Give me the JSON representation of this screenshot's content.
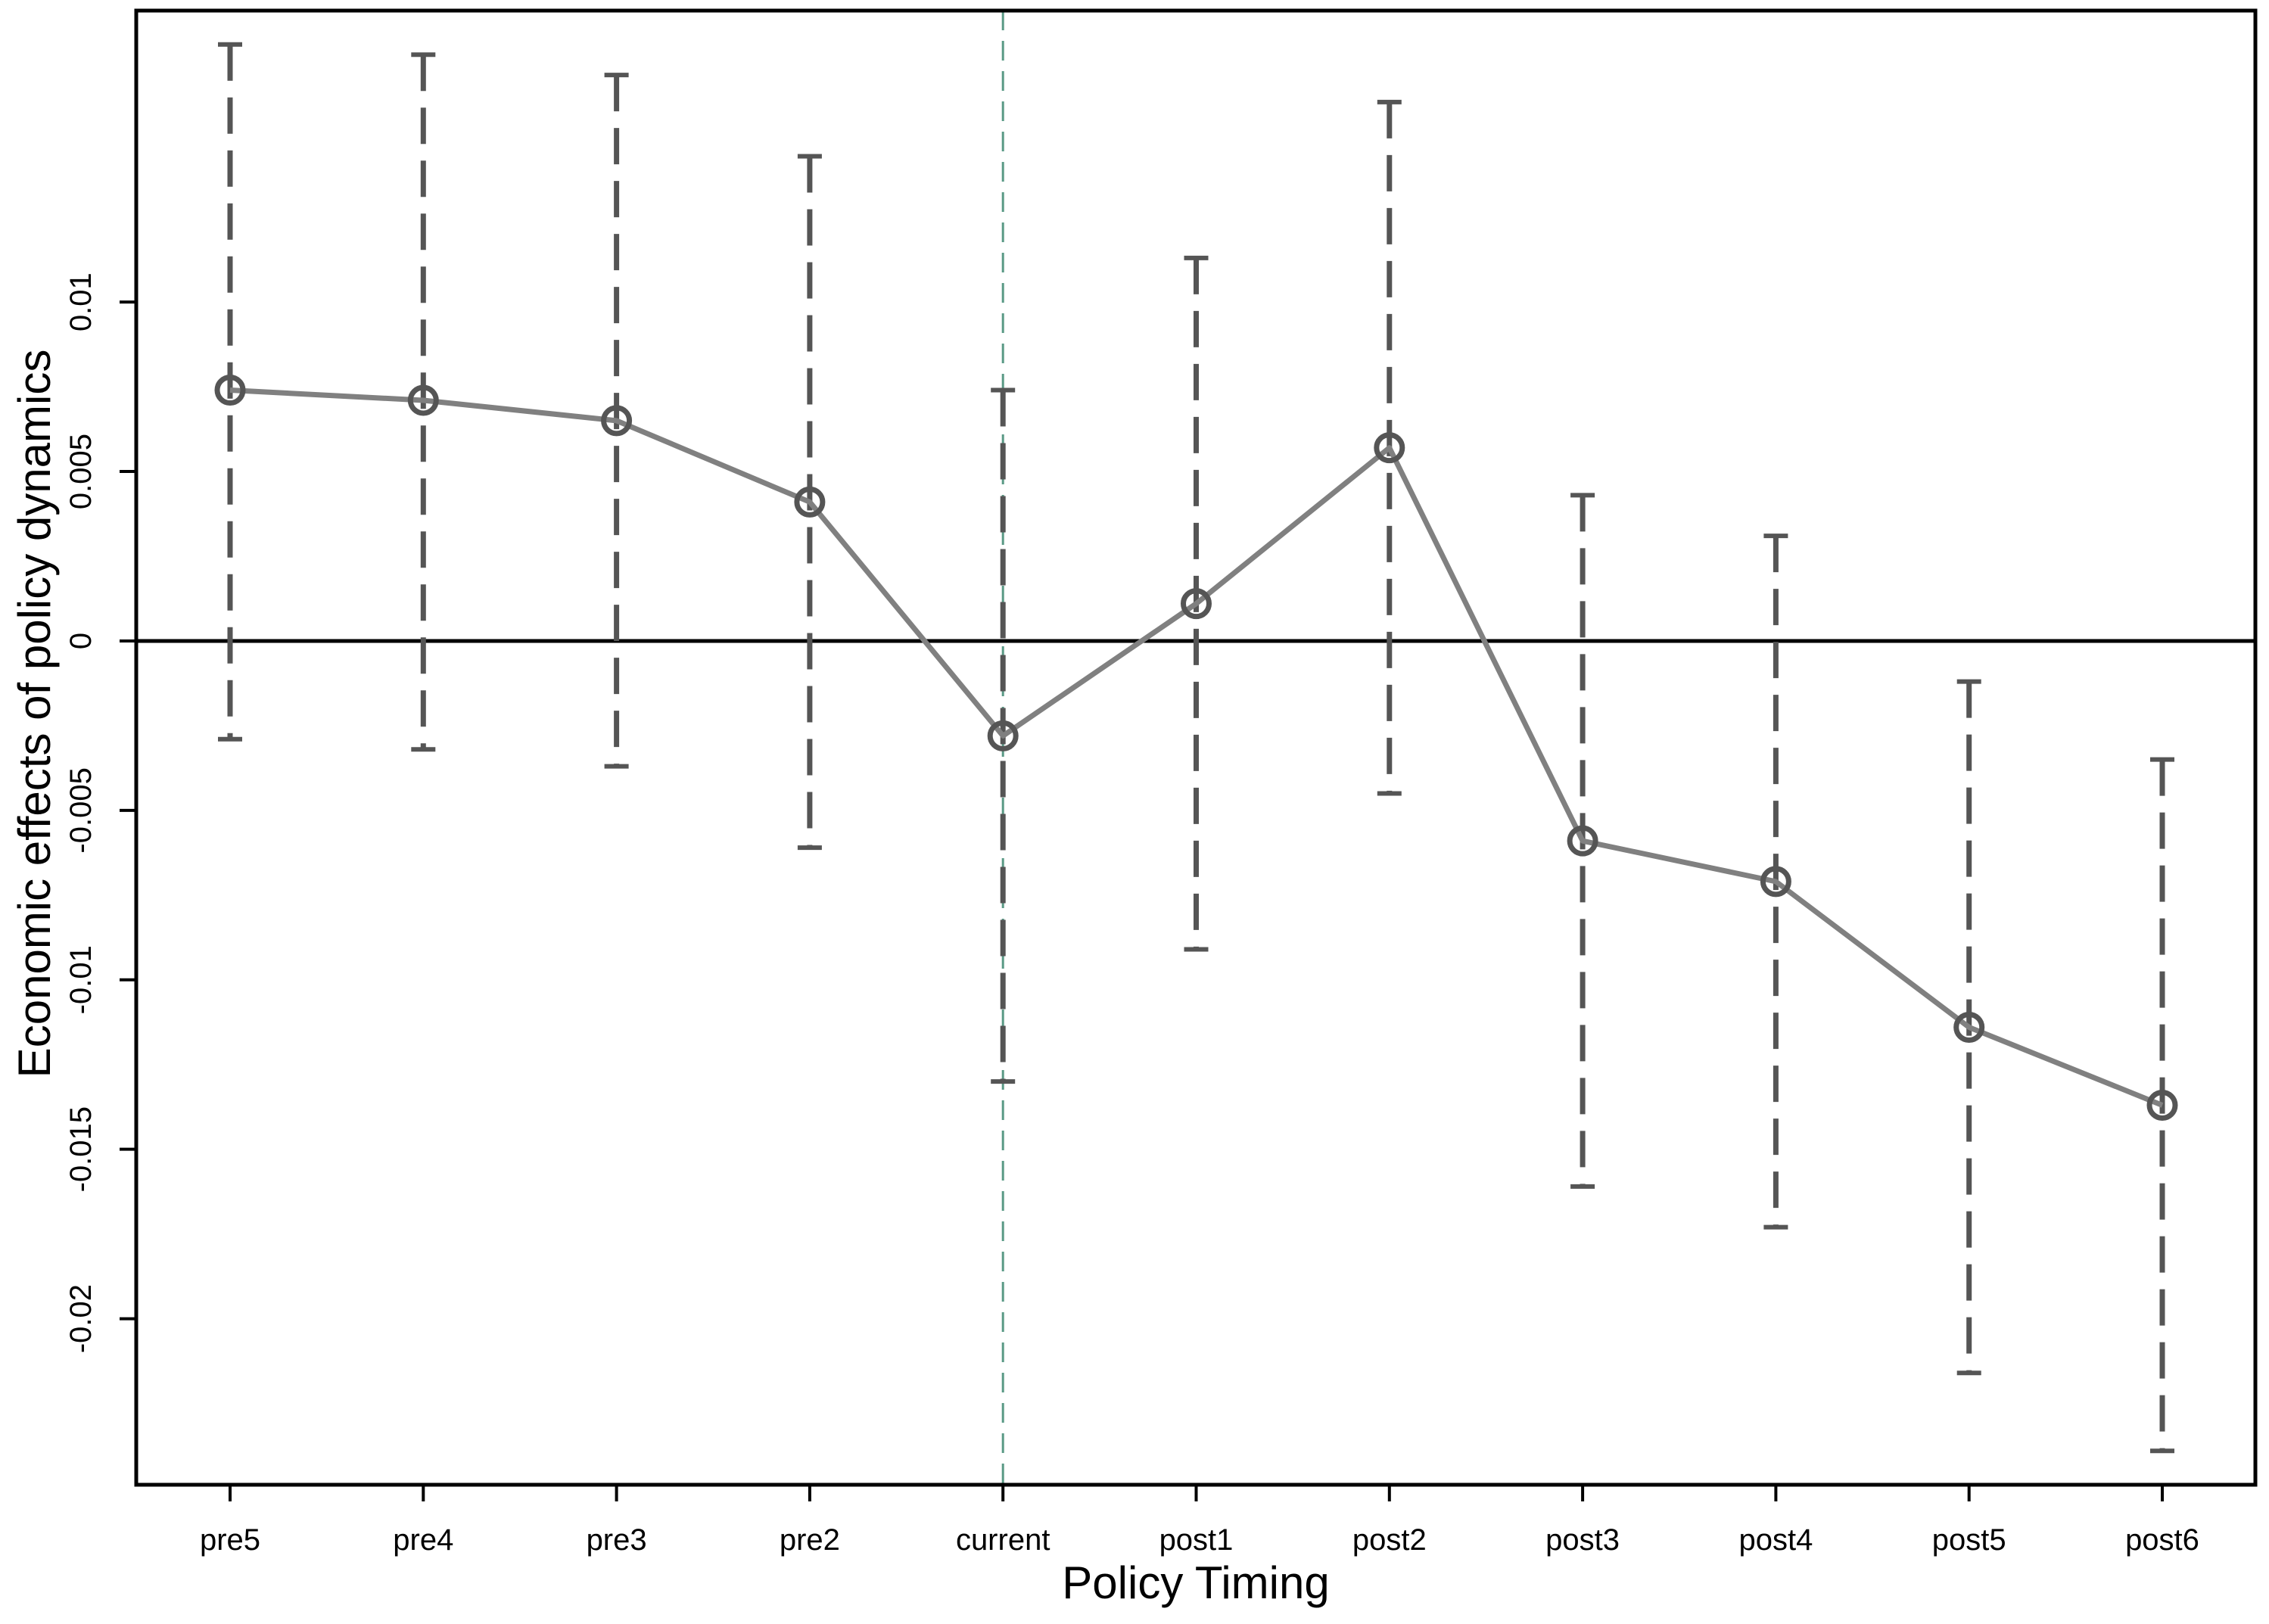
{
  "chart_data": {
    "type": "line",
    "title": "",
    "xlabel": "Policy Timing",
    "ylabel": "Economic effects of policy dynamics",
    "categories": [
      "pre5",
      "pre4",
      "pre3",
      "pre2",
      "current",
      "post1",
      "post2",
      "post3",
      "post4",
      "post5",
      "post6"
    ],
    "series": [
      {
        "values": [
          0.0074,
          0.0071,
          0.0065,
          0.0041,
          -0.0028,
          0.0011,
          0.0057,
          -0.0059,
          -0.0071,
          -0.0114,
          -0.0137
        ],
        "ci_lower": [
          -0.0029,
          -0.0032,
          -0.0037,
          -0.0061,
          -0.013,
          -0.0091,
          -0.0045,
          -0.0161,
          -0.0173,
          -0.0216,
          -0.0239
        ],
        "ci_upper": [
          0.0176,
          0.0173,
          0.0167,
          0.0143,
          0.0074,
          0.0113,
          0.0159,
          0.0043,
          0.0031,
          -0.0012,
          -0.0035
        ],
        "color": "#808080",
        "marker": "hollow-circle"
      }
    ],
    "error_bar_style": "dashed",
    "error_bar_color": "#555555",
    "yticks": [
      -0.02,
      -0.015,
      -0.01,
      -0.005,
      0,
      0.005,
      0.01
    ],
    "ytick_labels": [
      "-0.02",
      "-0.015",
      "-0.01",
      "-0.005",
      "0",
      "0.005",
      "0.01"
    ],
    "ylim": [
      -0.0249,
      0.0186
    ],
    "reference_lines": {
      "horizontal_at": 0,
      "vertical_at_category": "current",
      "vertical_color": "#5a9a86",
      "vertical_style": "dashed"
    },
    "grid": false,
    "legend": "none"
  }
}
